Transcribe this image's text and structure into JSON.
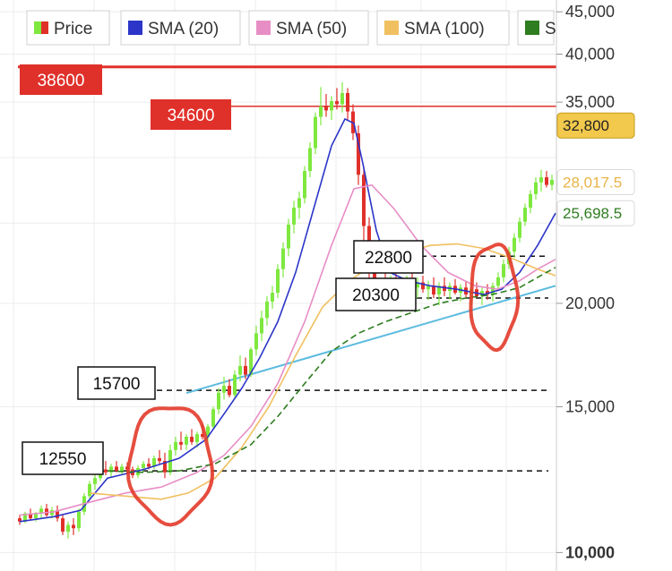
{
  "chart_data": {
    "type": "candlestick",
    "legend": {
      "items": [
        {
          "name": "Price",
          "color_up": "#7ee83f",
          "color_down": "#e0302a"
        },
        {
          "name": "SMA (20)",
          "color": "#2c35c8"
        },
        {
          "name": "SMA (50)",
          "color": "#e78ec6"
        },
        {
          "name": "SMA (100)",
          "color": "#f0c060"
        },
        {
          "name": "S",
          "color": "#2e7d20"
        }
      ]
    },
    "y_axis": {
      "scale": "log",
      "ylim": [
        9500,
        46500
      ],
      "ticks": [
        {
          "value": 45000,
          "label": "45,000"
        },
        {
          "value": 40000,
          "label": "40,000"
        },
        {
          "value": 35000,
          "label": "35,000"
        },
        {
          "value": 20000,
          "label": "20,000"
        },
        {
          "value": 15000,
          "label": "15,000"
        },
        {
          "value": 10000,
          "label": "10,000"
        }
      ]
    },
    "price_tags": [
      {
        "value": 32800,
        "label": "32,800",
        "bg": "#f2c94c",
        "fg": "#222222",
        "border": "#c49a1a"
      },
      {
        "value": 28017.5,
        "label": "28,017.5",
        "bg": "#ffffff",
        "fg": "#e8b446",
        "border": "#d9d9d9"
      },
      {
        "value": 25698.5,
        "label": "25,698.5",
        "bg": "#ffffff",
        "fg": "#2e7d20",
        "border": "#d9d9d9"
      }
    ],
    "resistance_lines": [
      {
        "value": 38600,
        "label": "38600",
        "style": "solid",
        "color": "#e0302a"
      },
      {
        "value": 34600,
        "label": "34600",
        "style": "solid",
        "color": "#e0302a"
      }
    ],
    "support_lines": [
      {
        "value": 22800,
        "label": "22800",
        "style": "dashed"
      },
      {
        "value": 20300,
        "label": "20300",
        "style": "dashed"
      },
      {
        "value": 15700,
        "label": "15700",
        "style": "dashed"
      },
      {
        "value": 12550,
        "label": "12550",
        "style": "dashed"
      }
    ],
    "trendline": {
      "color": "#5bbbe0",
      "points": [
        {
          "t": 118,
          "v": 12300
        },
        {
          "t": 620,
          "v": 21000
        }
      ]
    },
    "highlight_circles": [
      {
        "label": "",
        "t_center": 190,
        "v_center": 12800
      },
      {
        "label": "",
        "t_center": 551,
        "v_center": 20400
      }
    ],
    "series": [
      {
        "name": "Price",
        "comment_t": "t is the horizontal candle index across the chart",
        "candles": [
          [
            22,
            11000,
            11100,
            10800,
            10900
          ],
          [
            28,
            10900,
            11200,
            10850,
            11150
          ],
          [
            34,
            11150,
            11300,
            10950,
            11000
          ],
          [
            40,
            11000,
            11200,
            10900,
            11150
          ],
          [
            46,
            11150,
            11400,
            11000,
            11300
          ],
          [
            52,
            11300,
            11450,
            11050,
            11100
          ],
          [
            58,
            11100,
            11350,
            11000,
            11250
          ],
          [
            64,
            11250,
            11400,
            10900,
            11000
          ],
          [
            70,
            11000,
            11100,
            10500,
            10600
          ],
          [
            76,
            10600,
            10900,
            10400,
            10800
          ],
          [
            82,
            10800,
            11000,
            10500,
            10700
          ],
          [
            88,
            10700,
            11300,
            10600,
            11200
          ],
          [
            94,
            11200,
            11800,
            11100,
            11700
          ],
          [
            100,
            11700,
            12200,
            11600,
            12100
          ],
          [
            106,
            12100,
            12500,
            11900,
            12300
          ],
          [
            112,
            12300,
            12700,
            12200,
            12600
          ],
          [
            118,
            12600,
            12900,
            12400,
            12500
          ],
          [
            124,
            12500,
            12800,
            12350,
            12700
          ],
          [
            130,
            12700,
            12900,
            12500,
            12550
          ],
          [
            136,
            12550,
            12800,
            12400,
            12700
          ],
          [
            142,
            12700,
            12850,
            12500,
            12600
          ],
          [
            148,
            12600,
            12700,
            12300,
            12400
          ],
          [
            154,
            12400,
            12750,
            12300,
            12650
          ],
          [
            160,
            12650,
            12900,
            12500,
            12800
          ],
          [
            166,
            12800,
            13000,
            12600,
            12700
          ],
          [
            172,
            12700,
            13100,
            12600,
            13000
          ],
          [
            178,
            13000,
            13300,
            12800,
            12900
          ],
          [
            184,
            12900,
            13200,
            12300,
            12500
          ],
          [
            190,
            12500,
            13500,
            12400,
            13300
          ],
          [
            196,
            13300,
            13800,
            13100,
            13600
          ],
          [
            202,
            13600,
            14000,
            13300,
            13500
          ],
          [
            208,
            13500,
            13900,
            13300,
            13800
          ],
          [
            214,
            13800,
            14100,
            13500,
            13600
          ],
          [
            220,
            13600,
            14000,
            13400,
            13900
          ],
          [
            226,
            13900,
            14300,
            13700,
            13800
          ],
          [
            232,
            13800,
            14300,
            13600,
            14200
          ],
          [
            238,
            14200,
            15000,
            14100,
            14900
          ],
          [
            244,
            14900,
            15800,
            14700,
            15600
          ],
          [
            250,
            15600,
            16300,
            15300,
            15900
          ],
          [
            256,
            15900,
            16200,
            15400,
            15500
          ],
          [
            262,
            15500,
            16600,
            15400,
            16400
          ],
          [
            268,
            16400,
            17300,
            16100,
            16800
          ],
          [
            274,
            16800,
            17200,
            16200,
            16400
          ],
          [
            280,
            16400,
            17700,
            16300,
            17600
          ],
          [
            286,
            17600,
            18800,
            17300,
            18400
          ],
          [
            292,
            18400,
            19600,
            18000,
            19200
          ],
          [
            298,
            19200,
            20400,
            18800,
            20100
          ],
          [
            304,
            20100,
            21000,
            19700,
            20600
          ],
          [
            310,
            20600,
            22300,
            20300,
            22000
          ],
          [
            316,
            22000,
            23700,
            21500,
            23300
          ],
          [
            322,
            23300,
            25300,
            22800,
            24900
          ],
          [
            328,
            24900,
            26600,
            24300,
            26100
          ],
          [
            334,
            26100,
            27300,
            25300,
            26800
          ],
          [
            340,
            26800,
            29300,
            26400,
            28900
          ],
          [
            346,
            28900,
            31300,
            28400,
            30800
          ],
          [
            352,
            30800,
            34000,
            30300,
            33600
          ],
          [
            358,
            33600,
            36500,
            32800,
            34600
          ],
          [
            364,
            34600,
            35800,
            33600,
            34200
          ],
          [
            370,
            34200,
            35600,
            33300,
            35100
          ],
          [
            376,
            35100,
            36400,
            34300,
            34800
          ],
          [
            382,
            34800,
            37000,
            34000,
            35900
          ],
          [
            388,
            35900,
            36400,
            33300,
            34100
          ],
          [
            394,
            34100,
            34800,
            31500,
            32100
          ],
          [
            400,
            32100,
            32800,
            27800,
            28600
          ],
          [
            406,
            28600,
            29300,
            23800,
            24800
          ],
          [
            412,
            24800,
            25400,
            20800,
            21800
          ],
          [
            418,
            21800,
            22800,
            19700,
            20300
          ],
          [
            424,
            20300,
            21300,
            19800,
            21100
          ],
          [
            430,
            21100,
            21900,
            20600,
            20900
          ],
          [
            436,
            20900,
            21600,
            20200,
            21200
          ],
          [
            442,
            21200,
            21800,
            19800,
            20200
          ],
          [
            448,
            20200,
            21200,
            19500,
            20900
          ],
          [
            454,
            20900,
            21600,
            20400,
            21300
          ],
          [
            460,
            21300,
            21800,
            20700,
            20900
          ],
          [
            466,
            20900,
            21500,
            20300,
            21200
          ],
          [
            472,
            21200,
            21600,
            20600,
            20800
          ],
          [
            478,
            20800,
            21300,
            20200,
            21000
          ],
          [
            484,
            21000,
            21500,
            20300,
            20500
          ],
          [
            490,
            20500,
            21200,
            19900,
            21000
          ],
          [
            496,
            21000,
            21500,
            20400,
            20700
          ],
          [
            502,
            20700,
            21200,
            20200,
            21000
          ],
          [
            508,
            21000,
            21400,
            20500,
            20600
          ],
          [
            514,
            20600,
            21100,
            20100,
            20900
          ],
          [
            520,
            20900,
            21300,
            20300,
            20500
          ],
          [
            526,
            20500,
            21000,
            19900,
            20800
          ],
          [
            532,
            20800,
            21200,
            20300,
            20400
          ],
          [
            538,
            20400,
            20900,
            19900,
            20700
          ],
          [
            544,
            20700,
            21100,
            20200,
            20500
          ],
          [
            550,
            20500,
            21200,
            20100,
            21000
          ],
          [
            556,
            21000,
            21800,
            20700,
            21500
          ],
          [
            562,
            21500,
            22600,
            21200,
            22300
          ],
          [
            568,
            22300,
            23400,
            22000,
            23100
          ],
          [
            574,
            23100,
            24300,
            22700,
            24000
          ],
          [
            580,
            24000,
            25400,
            23700,
            25100
          ],
          [
            586,
            25100,
            26400,
            24800,
            26100
          ],
          [
            592,
            26100,
            27400,
            25700,
            27100
          ],
          [
            598,
            27100,
            28400,
            26700,
            28000
          ],
          [
            604,
            28000,
            29000,
            27300,
            28400
          ],
          [
            610,
            28400,
            28900,
            27600,
            27800
          ],
          [
            616,
            27800,
            28600,
            27400,
            28200
          ]
        ]
      },
      {
        "name": "SMA (20)",
        "points": [
          [
            22,
            10900
          ],
          [
            60,
            11050
          ],
          [
            90,
            11250
          ],
          [
            120,
            12300
          ],
          [
            160,
            12600
          ],
          [
            200,
            13000
          ],
          [
            230,
            13700
          ],
          [
            250,
            14700
          ],
          [
            270,
            15800
          ],
          [
            290,
            17200
          ],
          [
            310,
            19000
          ],
          [
            330,
            21800
          ],
          [
            350,
            26000
          ],
          [
            370,
            31000
          ],
          [
            385,
            33400
          ],
          [
            395,
            33000
          ],
          [
            405,
            29500
          ],
          [
            420,
            24500
          ],
          [
            435,
            21800
          ],
          [
            455,
            21300
          ],
          [
            480,
            21000
          ],
          [
            510,
            20800
          ],
          [
            540,
            20500
          ],
          [
            560,
            20800
          ],
          [
            580,
            21800
          ],
          [
            600,
            23500
          ],
          [
            620,
            25700
          ]
        ]
      },
      {
        "name": "SMA (50)",
        "points": [
          [
            22,
            11100
          ],
          [
            60,
            11200
          ],
          [
            100,
            11500
          ],
          [
            140,
            11800
          ],
          [
            180,
            12000
          ],
          [
            220,
            12500
          ],
          [
            250,
            13100
          ],
          [
            280,
            14200
          ],
          [
            310,
            16000
          ],
          [
            340,
            19000
          ],
          [
            370,
            23500
          ],
          [
            395,
            27500
          ],
          [
            415,
            27800
          ],
          [
            440,
            26000
          ],
          [
            470,
            23500
          ],
          [
            500,
            21800
          ],
          [
            530,
            21000
          ],
          [
            555,
            20800
          ],
          [
            580,
            21300
          ],
          [
            600,
            22000
          ],
          [
            620,
            22600
          ]
        ]
      },
      {
        "name": "SMA (100)",
        "points": [
          [
            100,
            11800
          ],
          [
            140,
            11700
          ],
          [
            180,
            11600
          ],
          [
            210,
            11800
          ],
          [
            240,
            12300
          ],
          [
            270,
            13400
          ],
          [
            300,
            15000
          ],
          [
            330,
            17300
          ],
          [
            360,
            19800
          ],
          [
            390,
            21300
          ],
          [
            420,
            22400
          ],
          [
            450,
            23000
          ],
          [
            480,
            23500
          ],
          [
            510,
            23600
          ],
          [
            540,
            23300
          ],
          [
            570,
            22700
          ],
          [
            600,
            22000
          ],
          [
            620,
            21600
          ]
        ]
      },
      {
        "name": "S",
        "points": [
          [
            120,
            12550
          ],
          [
            160,
            12500
          ],
          [
            200,
            12550
          ],
          [
            240,
            12800
          ],
          [
            280,
            13500
          ],
          [
            310,
            14600
          ],
          [
            340,
            16000
          ],
          [
            370,
            17500
          ],
          [
            400,
            18400
          ],
          [
            430,
            19000
          ],
          [
            460,
            19500
          ],
          [
            490,
            20000
          ],
          [
            520,
            20300
          ],
          [
            550,
            20500
          ],
          [
            580,
            20900
          ],
          [
            600,
            21500
          ],
          [
            620,
            22100
          ]
        ]
      }
    ]
  }
}
